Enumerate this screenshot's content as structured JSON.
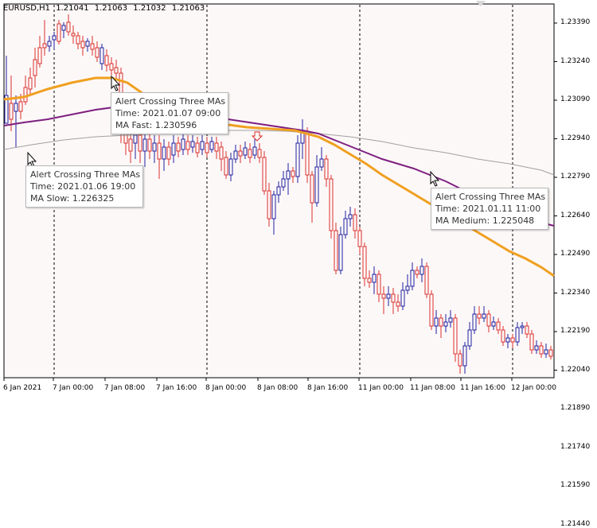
{
  "header": {
    "symbol": "EURUSD,H1",
    "open": "1.21041",
    "high": "1.21063",
    "low": "1.21032",
    "close": "1.21063"
  },
  "price_axis": [
    "1.23390",
    "1.23240",
    "1.23090",
    "1.22940",
    "1.22790",
    "1.22640",
    "1.22490",
    "1.22340",
    "1.22190",
    "1.22040",
    "1.21890",
    "1.21740",
    "1.21590",
    "1.21440"
  ],
  "time_axis": [
    "6 Jan 2021",
    "7 Jan 00:00",
    "7 Jan 08:00",
    "7 Jan 16:00",
    "8 Jan 00:00",
    "8 Jan 08:00",
    "8 Jan 16:00",
    "11 Jan 00:00",
    "11 Jan 08:00",
    "11 Jan 16:00",
    "12 Jan 00:00"
  ],
  "tooltips": [
    {
      "title": "Alert Crossing Three MAs",
      "time": "Time: 2021.01.07 09:00",
      "value": "MA Fast: 1.230596"
    },
    {
      "title": "Alert Crossing Three MAs",
      "time": "Time: 2021.01.06 19:00",
      "value": "MA Slow: 1.226325"
    },
    {
      "title": "Alert Crossing Three MAs",
      "time": "Time: 2021.01.11 11:00",
      "value": "MA Medium: 1.225048"
    }
  ],
  "colors": {
    "bull": "#1f1f9f",
    "bear": "#d9302c",
    "ma_fast": "#f0a020",
    "ma_medium": "#7d1f7f",
    "ma_slow": "#a0a0a0",
    "background": "#fdf8f8",
    "grid": "#000000"
  }
}
